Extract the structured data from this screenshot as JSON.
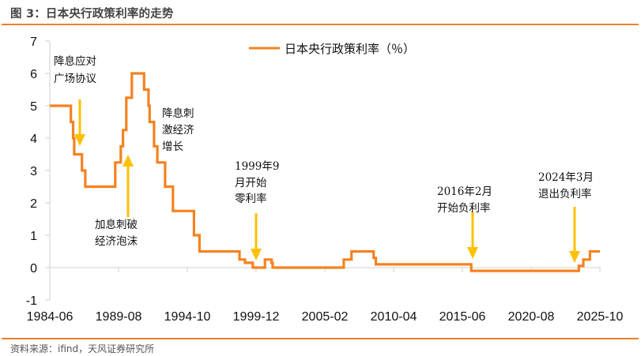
{
  "figure": {
    "title": "图 3：日本央行政策利率的走势",
    "source": "资料来源：ifind，天风证券研究所"
  },
  "colors": {
    "line": "#f58220",
    "arrow": "#ffc000",
    "rule": "#e8822a",
    "axis": "#d9d9d9"
  },
  "chart_data": {
    "type": "line",
    "title": "日本央行政策利率的走势",
    "xlabel": "",
    "ylabel": "",
    "ylim": [
      -1,
      7
    ],
    "yticks": [
      -1,
      0,
      1,
      2,
      3,
      4,
      5,
      6,
      7
    ],
    "xticks": [
      "1984-06",
      "1989-08",
      "1994-10",
      "1999-12",
      "2005-02",
      "2010-04",
      "2015-06",
      "2020-08",
      "2025-10"
    ],
    "grid": false,
    "legend_position": "top-center",
    "step": true,
    "series": [
      {
        "name": "日本央行政策利率（％）",
        "points": [
          [
            "1984-06",
            5.0
          ],
          [
            "1986-01",
            4.5
          ],
          [
            "1986-03",
            4.0
          ],
          [
            "1986-04",
            3.5
          ],
          [
            "1986-11",
            3.0
          ],
          [
            "1987-02",
            2.5
          ],
          [
            "1989-05",
            3.25
          ],
          [
            "1989-10",
            3.75
          ],
          [
            "1989-12",
            4.25
          ],
          [
            "1990-03",
            5.25
          ],
          [
            "1990-08",
            6.0
          ],
          [
            "1991-07",
            5.5
          ],
          [
            "1991-11",
            5.0
          ],
          [
            "1991-12",
            4.5
          ],
          [
            "1992-04",
            3.75
          ],
          [
            "1992-07",
            3.25
          ],
          [
            "1993-02",
            2.5
          ],
          [
            "1993-09",
            1.75
          ],
          [
            "1995-04",
            1.0
          ],
          [
            "1995-09",
            0.5
          ],
          [
            "1998-09",
            0.25
          ],
          [
            "1999-02",
            0.15
          ],
          [
            "1999-09",
            0.0
          ],
          [
            "2000-08",
            0.25
          ],
          [
            "2001-02",
            0.15
          ],
          [
            "2001-03",
            0.0
          ],
          [
            "2006-07",
            0.25
          ],
          [
            "2007-02",
            0.5
          ],
          [
            "2008-10",
            0.3
          ],
          [
            "2008-12",
            0.1
          ],
          [
            "2016-02",
            -0.1
          ],
          [
            "2024-03",
            0.05
          ],
          [
            "2024-07",
            0.25
          ],
          [
            "2025-01",
            0.5
          ],
          [
            "2025-10",
            0.5
          ]
        ]
      }
    ],
    "annotations": [
      {
        "lines": [
          "降息应对",
          "广场协议"
        ],
        "arrow": "down",
        "at": "1986-03"
      },
      {
        "lines": [
          "加息刺破",
          "经济泡沫"
        ],
        "arrow": "up",
        "at": "1989-12"
      },
      {
        "lines": [
          "降息刺",
          "激经济",
          "增长"
        ],
        "arrow": "none",
        "at": "1992-04"
      },
      {
        "lines": [
          "1999年9",
          "月开始",
          "零利率"
        ],
        "arrow": "down",
        "at": "1999-09"
      },
      {
        "lines": [
          "2016年2月",
          "开始负利率"
        ],
        "arrow": "down",
        "at": "2016-02"
      },
      {
        "lines": [
          "2024年3月",
          "退出负利率"
        ],
        "arrow": "down",
        "at": "2024-03"
      }
    ]
  },
  "legend": {
    "label": "日本央行政策利率（％）"
  },
  "axis": {
    "y_labels": [
      "7",
      "6",
      "5",
      "4",
      "3",
      "2",
      "1",
      "0",
      "-1"
    ],
    "x_labels": [
      "1984-06",
      "1989-08",
      "1994-10",
      "1999-12",
      "2005-02",
      "2010-04",
      "2015-06",
      "2020-08",
      "2025-10"
    ]
  },
  "annotations": {
    "a1": {
      "l1": "降息应对",
      "l2": "广场协议"
    },
    "a2": {
      "l1": "加息刺破",
      "l2": "经济泡沫"
    },
    "a3": {
      "l1": "降息刺",
      "l2": "激经济",
      "l3": "增长"
    },
    "a4": {
      "l1": "1999年9",
      "l2": "月开始",
      "l3": "零利率"
    },
    "a5": {
      "l1": "2016年2月",
      "l2": "开始负利率"
    },
    "a6": {
      "l1": "2024年3月",
      "l2": "退出负利率"
    }
  }
}
